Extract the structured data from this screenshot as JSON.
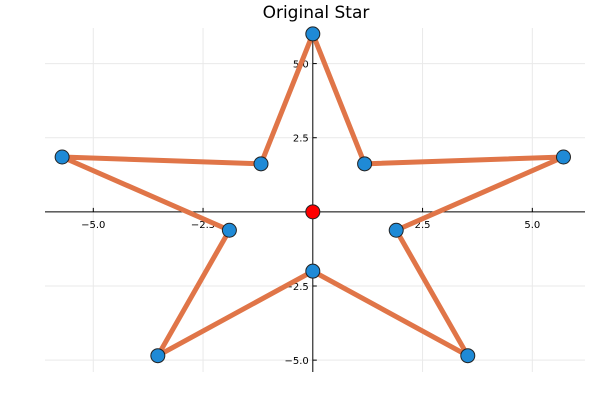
{
  "chart_data": {
    "type": "line",
    "title": "Original Star",
    "xlabel": "",
    "ylabel": "",
    "xlim": [
      -6.1,
      6.2
    ],
    "ylim": [
      -5.4,
      6.2
    ],
    "x_ticks": [
      -5.0,
      -2.5,
      2.5,
      5.0
    ],
    "y_ticks": [
      -5.0,
      -2.5,
      2.5,
      5.0
    ],
    "x_tick_labels": [
      "−5.0",
      "−2.5",
      "2.5",
      "5.0"
    ],
    "y_tick_labels": [
      "−5.0",
      "−2.5",
      "2.5",
      "5.0"
    ],
    "grid": true,
    "legend": "none",
    "series": [
      {
        "type": "line",
        "color": "#e07548",
        "x": [
          0.0,
          1.18,
          5.71,
          1.9,
          3.53,
          0.0,
          -3.53,
          -1.9,
          -5.71,
          -1.18,
          0.0
        ],
        "y": [
          6.0,
          1.62,
          1.85,
          -0.62,
          -4.85,
          -2.0,
          -4.85,
          -0.62,
          1.85,
          1.62,
          6.0
        ]
      },
      {
        "type": "scatter",
        "color": "#1f8ad6",
        "x": [
          0.0,
          1.18,
          5.71,
          1.9,
          3.53,
          0.0,
          -3.53,
          -1.9,
          -5.71,
          -1.18
        ],
        "y": [
          6.0,
          1.62,
          1.85,
          -0.62,
          -4.85,
          -2.0,
          -4.85,
          -0.62,
          1.85,
          1.62
        ]
      },
      {
        "type": "scatter",
        "color": "#ff0000",
        "x": [
          0.0
        ],
        "y": [
          0.0
        ]
      }
    ]
  }
}
